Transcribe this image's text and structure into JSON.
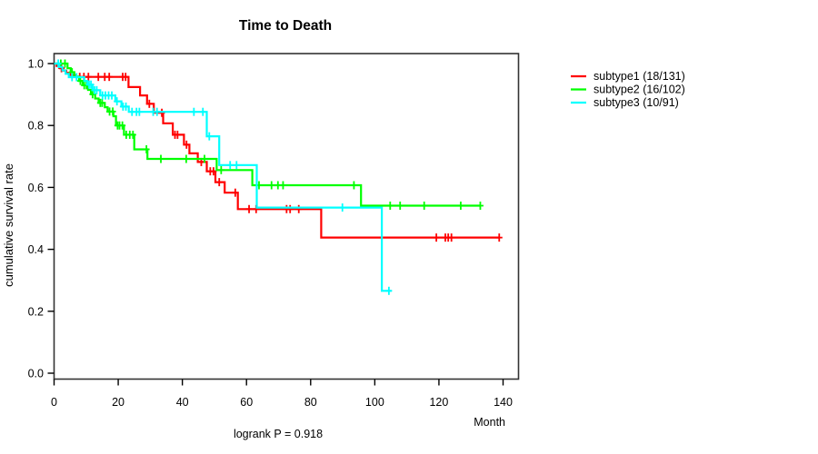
{
  "chart_data": {
    "type": "line",
    "subtype": "kaplan-meier-step",
    "title": "Time to Death",
    "xlabel": "Month",
    "ylabel": "cumulative survival rate",
    "annotation": "logrank P = 0.918",
    "xlim": [
      0,
      140
    ],
    "ylim": [
      0.0,
      1.0
    ],
    "x_ticks": [
      0,
      20,
      40,
      60,
      80,
      100,
      120,
      140
    ],
    "y_ticks": [
      0.0,
      0.2,
      0.4,
      0.6,
      0.8,
      1.0
    ],
    "grid": false,
    "legend_position": "right-outside",
    "series": [
      {
        "name": "subtype1",
        "legend_label": "subtype1 (18/131)",
        "color": "#FF0000",
        "end": 138.8,
        "steps": [
          [
            0,
            1.0
          ],
          [
            0.8,
            0.992
          ],
          [
            1.8,
            0.985
          ],
          [
            2.8,
            0.977
          ],
          [
            3.8,
            0.97
          ],
          [
            5.0,
            0.963
          ],
          [
            6.5,
            0.957
          ],
          [
            23.2,
            0.924
          ],
          [
            26.8,
            0.897
          ],
          [
            29.0,
            0.87
          ],
          [
            31.1,
            0.841
          ],
          [
            34.0,
            0.807
          ],
          [
            37.0,
            0.77
          ],
          [
            40.5,
            0.738
          ],
          [
            42.2,
            0.71
          ],
          [
            44.8,
            0.682
          ],
          [
            47.6,
            0.652
          ],
          [
            50.3,
            0.617
          ],
          [
            53.2,
            0.583
          ],
          [
            57.3,
            0.53
          ],
          [
            83.3,
            0.438
          ]
        ],
        "censor_months": [
          2.3,
          8.0,
          9.3,
          10.7,
          13.8,
          15.8,
          17.2,
          21.4,
          22.3,
          29.7,
          33.6,
          37.7,
          38.5,
          41.3,
          45.9,
          48.7,
          49.7,
          51.5,
          56.5,
          60.8,
          63.0,
          72.5,
          73.6,
          76.3,
          119.2,
          122.0,
          122.9,
          123.9,
          138.8
        ]
      },
      {
        "name": "subtype2",
        "legend_label": "subtype2 (16/102)",
        "color": "#00FF00",
        "end": 132.9,
        "steps": [
          [
            0,
            1.0
          ],
          [
            4.2,
            0.985
          ],
          [
            5.2,
            0.972
          ],
          [
            6.3,
            0.958
          ],
          [
            7.8,
            0.944
          ],
          [
            8.9,
            0.93
          ],
          [
            10.6,
            0.915
          ],
          [
            11.5,
            0.901
          ],
          [
            12.8,
            0.887
          ],
          [
            13.9,
            0.873
          ],
          [
            15.8,
            0.859
          ],
          [
            16.7,
            0.845
          ],
          [
            18.5,
            0.83
          ],
          [
            19.3,
            0.8
          ],
          [
            21.8,
            0.77
          ],
          [
            25.0,
            0.723
          ],
          [
            29.1,
            0.692
          ],
          [
            50.7,
            0.656
          ],
          [
            61.8,
            0.607
          ],
          [
            95.7,
            0.541
          ]
        ],
        "censor_months": [
          2.1,
          3.4,
          5.6,
          8.2,
          9.4,
          10.1,
          12.0,
          14.4,
          15.0,
          17.3,
          18.3,
          19.8,
          20.4,
          21.3,
          22.5,
          23.6,
          24.6,
          28.8,
          33.3,
          41.2,
          46.9,
          52.1,
          63.9,
          67.8,
          69.8,
          71.4,
          93.5,
          104.8,
          107.9,
          115.4,
          126.8,
          132.9
        ]
      },
      {
        "name": "subtype3",
        "legend_label": "subtype3 (10/91)",
        "color": "#00FFFF",
        "end": 105.2,
        "steps": [
          [
            0,
            1.0
          ],
          [
            1.6,
            0.989
          ],
          [
            2.6,
            0.978
          ],
          [
            3.6,
            0.967
          ],
          [
            4.6,
            0.956
          ],
          [
            9.4,
            0.944
          ],
          [
            10.4,
            0.932
          ],
          [
            12.0,
            0.914
          ],
          [
            14.4,
            0.897
          ],
          [
            19.1,
            0.878
          ],
          [
            21.0,
            0.861
          ],
          [
            23.3,
            0.844
          ],
          [
            47.6,
            0.765
          ],
          [
            51.5,
            0.672
          ],
          [
            63.2,
            0.535
          ],
          [
            102.2,
            0.266
          ]
        ],
        "censor_months": [
          1.3,
          5.6,
          7.0,
          10.9,
          11.5,
          12.6,
          13.3,
          15.1,
          16.0,
          17.0,
          18.0,
          19.6,
          21.5,
          22.4,
          24.3,
          25.7,
          26.6,
          30.9,
          32.1,
          43.6,
          46.4,
          48.4,
          54.9,
          56.9,
          89.9,
          104.4
        ]
      }
    ]
  }
}
